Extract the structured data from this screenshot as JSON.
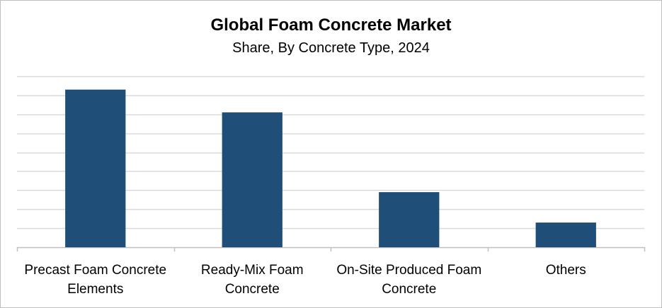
{
  "chart_data": {
    "type": "bar",
    "title": "Global Foam Concrete Market",
    "subtitle": "Share, By Concrete Type, 2024",
    "categories": [
      [
        "Precast Foam Concrete",
        "Elements"
      ],
      [
        "Ready-Mix Foam",
        "Concrete"
      ],
      [
        "On-Site Produced Foam",
        "Concrete"
      ],
      [
        "Others"
      ]
    ],
    "values": [
      8.3,
      7.1,
      2.9,
      1.3
    ],
    "ylim": [
      0,
      9
    ],
    "ygrid_step": 1,
    "grid": true,
    "y_tick_labels_shown": false,
    "bar_color": "#1f4e79",
    "grid_color": "#d9d9d9",
    "axis_color": "#bfbfbf"
  }
}
